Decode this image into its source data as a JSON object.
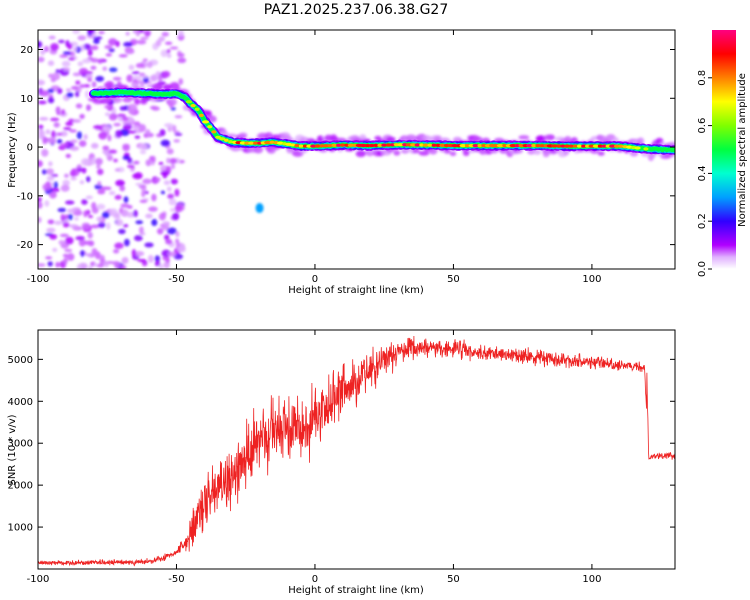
{
  "title": "PAZ1.2025.237.06.38.G27",
  "chart_data": [
    {
      "type": "heatmap",
      "title": "PAZ1.2025.237.06.38.G27",
      "xlabel": "Height of straight line (km)",
      "ylabel": "Frequency (Hz)",
      "xlim": [
        -100,
        130
      ],
      "ylim": [
        -25,
        24
      ],
      "xticks": [
        -100,
        -50,
        0,
        50,
        100
      ],
      "yticks": [
        20,
        10,
        0,
        -10,
        -20
      ],
      "colorbar": {
        "label": "Normalized spectral amplitude",
        "range": [
          0,
          1
        ],
        "ticks": [
          0.0,
          0.2,
          0.4,
          0.6,
          0.8
        ],
        "colormap": [
          "#ffffff",
          "#b000ff",
          "#3000ff",
          "#00a0ff",
          "#00ff80",
          "#60ff00",
          "#ffff00",
          "#ff8000",
          "#ff0000",
          "#ff0080"
        ]
      },
      "ridge": {
        "description_values_in_data_units": true,
        "x": [
          -80,
          -70,
          -60,
          -55,
          -50,
          -47,
          -45,
          -42,
          -40,
          -37,
          -35,
          -30,
          -25,
          -20,
          -15,
          -10,
          -5,
          0,
          10,
          20,
          30,
          40,
          50,
          60,
          70,
          80,
          90,
          100,
          110,
          120,
          130
        ],
        "frequency": [
          11,
          11.2,
          11,
          10.8,
          11,
          10.2,
          9,
          7.5,
          5.5,
          3.5,
          2,
          1,
          0.8,
          0.8,
          1,
          0.6,
          0.2,
          0.2,
          0.4,
          0.3,
          0.5,
          0.4,
          0.3,
          0.3,
          0.3,
          0.3,
          0.2,
          0.2,
          0.2,
          -0.4,
          -0.6
        ],
        "amplitude": [
          0.35,
          0.4,
          0.45,
          0.5,
          0.55,
          0.6,
          0.7,
          0.75,
          0.8,
          0.85,
          0.85,
          0.85,
          0.9,
          0.9,
          0.85,
          0.85,
          0.85,
          0.95,
          0.95,
          0.9,
          0.95,
          0.95,
          0.95,
          0.95,
          0.95,
          0.95,
          0.9,
          0.95,
          0.95,
          0.6,
          0.5
        ]
      },
      "noise_region_x": [
        -100,
        -50
      ],
      "isolated_blob": {
        "x": -20,
        "frequency": -12.5,
        "amplitude": 0.3
      }
    },
    {
      "type": "line",
      "xlabel": "Height of straight line (km)",
      "ylabel": "SNR (10 * v/v)",
      "xlim": [
        -100,
        130
      ],
      "ylim": [
        0,
        5700
      ],
      "xticks": [
        -100,
        -50,
        0,
        50,
        100
      ],
      "yticks": [
        1000,
        2000,
        3000,
        4000,
        5000
      ],
      "color": "#ee2222",
      "trend": {
        "x": [
          -100,
          -80,
          -60,
          -55,
          -50,
          -45,
          -40,
          -35,
          -30,
          -25,
          -20,
          -15,
          -10,
          -5,
          0,
          5,
          10,
          15,
          20,
          25,
          30,
          40,
          50,
          60,
          70,
          80,
          90,
          100,
          110,
          119,
          120.5,
          125,
          130
        ],
        "snr": [
          150,
          150,
          170,
          250,
          400,
          800,
          1500,
          1900,
          2300,
          2700,
          3000,
          3250,
          3300,
          3500,
          3600,
          3900,
          4200,
          4500,
          4800,
          5000,
          5150,
          5300,
          5250,
          5150,
          5100,
          5050,
          5000,
          4950,
          4850,
          4800,
          2700,
          2700,
          2700
        ]
      },
      "noise_amplitude": {
        "x": [
          -100,
          -50,
          -45,
          -40,
          -30,
          -20,
          -10,
          0,
          10,
          20,
          30,
          40,
          60,
          100,
          120,
          130
        ],
        "amp": [
          40,
          60,
          250,
          500,
          600,
          650,
          650,
          600,
          550,
          400,
          250,
          200,
          150,
          130,
          80,
          60
        ]
      }
    }
  ]
}
